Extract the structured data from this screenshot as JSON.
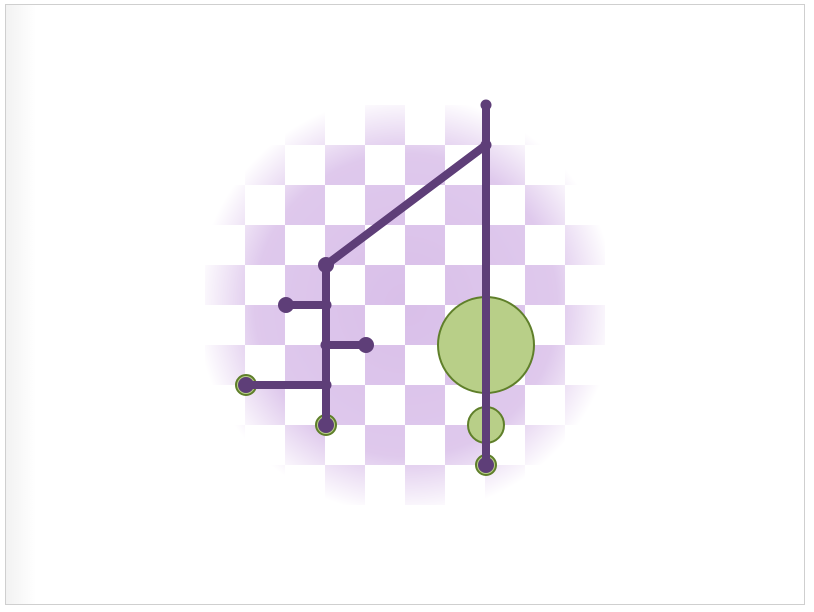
{
  "colors": {
    "path": "#5e3e78",
    "node_fill": "#b8cf88",
    "node_stroke": "#5f7f2a",
    "checker": "#d9bfe9",
    "background": "#ffffff",
    "frame_border": "#cfcfcf"
  },
  "diagram": {
    "grid": {
      "cols": 10,
      "rows": 10
    },
    "path_segments": [
      {
        "from": [
          2,
          8
        ],
        "to": [
          2,
          4
        ]
      },
      {
        "from": [
          2,
          4
        ],
        "to": [
          6,
          1
        ]
      },
      {
        "from": [
          6,
          0
        ],
        "to": [
          6,
          9
        ]
      },
      {
        "from": [
          1,
          5
        ],
        "to": [
          2,
          5
        ]
      },
      {
        "from": [
          2,
          6
        ],
        "to": [
          3,
          6
        ]
      },
      {
        "from": [
          0,
          7
        ],
        "to": [
          2,
          7
        ]
      }
    ],
    "path_dots": [
      {
        "at": [
          6,
          0
        ],
        "size": "small"
      },
      {
        "at": [
          6,
          1
        ],
        "size": "small"
      },
      {
        "at": [
          2,
          4
        ],
        "size": "large"
      },
      {
        "at": [
          1,
          5
        ],
        "size": "large"
      },
      {
        "at": [
          2,
          5
        ],
        "size": "small"
      },
      {
        "at": [
          2,
          6
        ],
        "size": "small"
      },
      {
        "at": [
          3,
          6
        ],
        "size": "large"
      },
      {
        "at": [
          2,
          7
        ],
        "size": "small"
      },
      {
        "at": [
          0,
          7
        ],
        "size": "large"
      },
      {
        "at": [
          2,
          8
        ],
        "size": "large"
      },
      {
        "at": [
          6,
          9
        ],
        "size": "large"
      }
    ],
    "nodes": [
      {
        "at": [
          6,
          6
        ],
        "size": "large"
      },
      {
        "at": [
          6,
          8
        ],
        "size": "medium"
      },
      {
        "at": [
          2,
          8
        ],
        "size": "small"
      },
      {
        "at": [
          0,
          7
        ],
        "size": "small"
      },
      {
        "at": [
          6,
          9
        ],
        "size": "small"
      }
    ]
  }
}
